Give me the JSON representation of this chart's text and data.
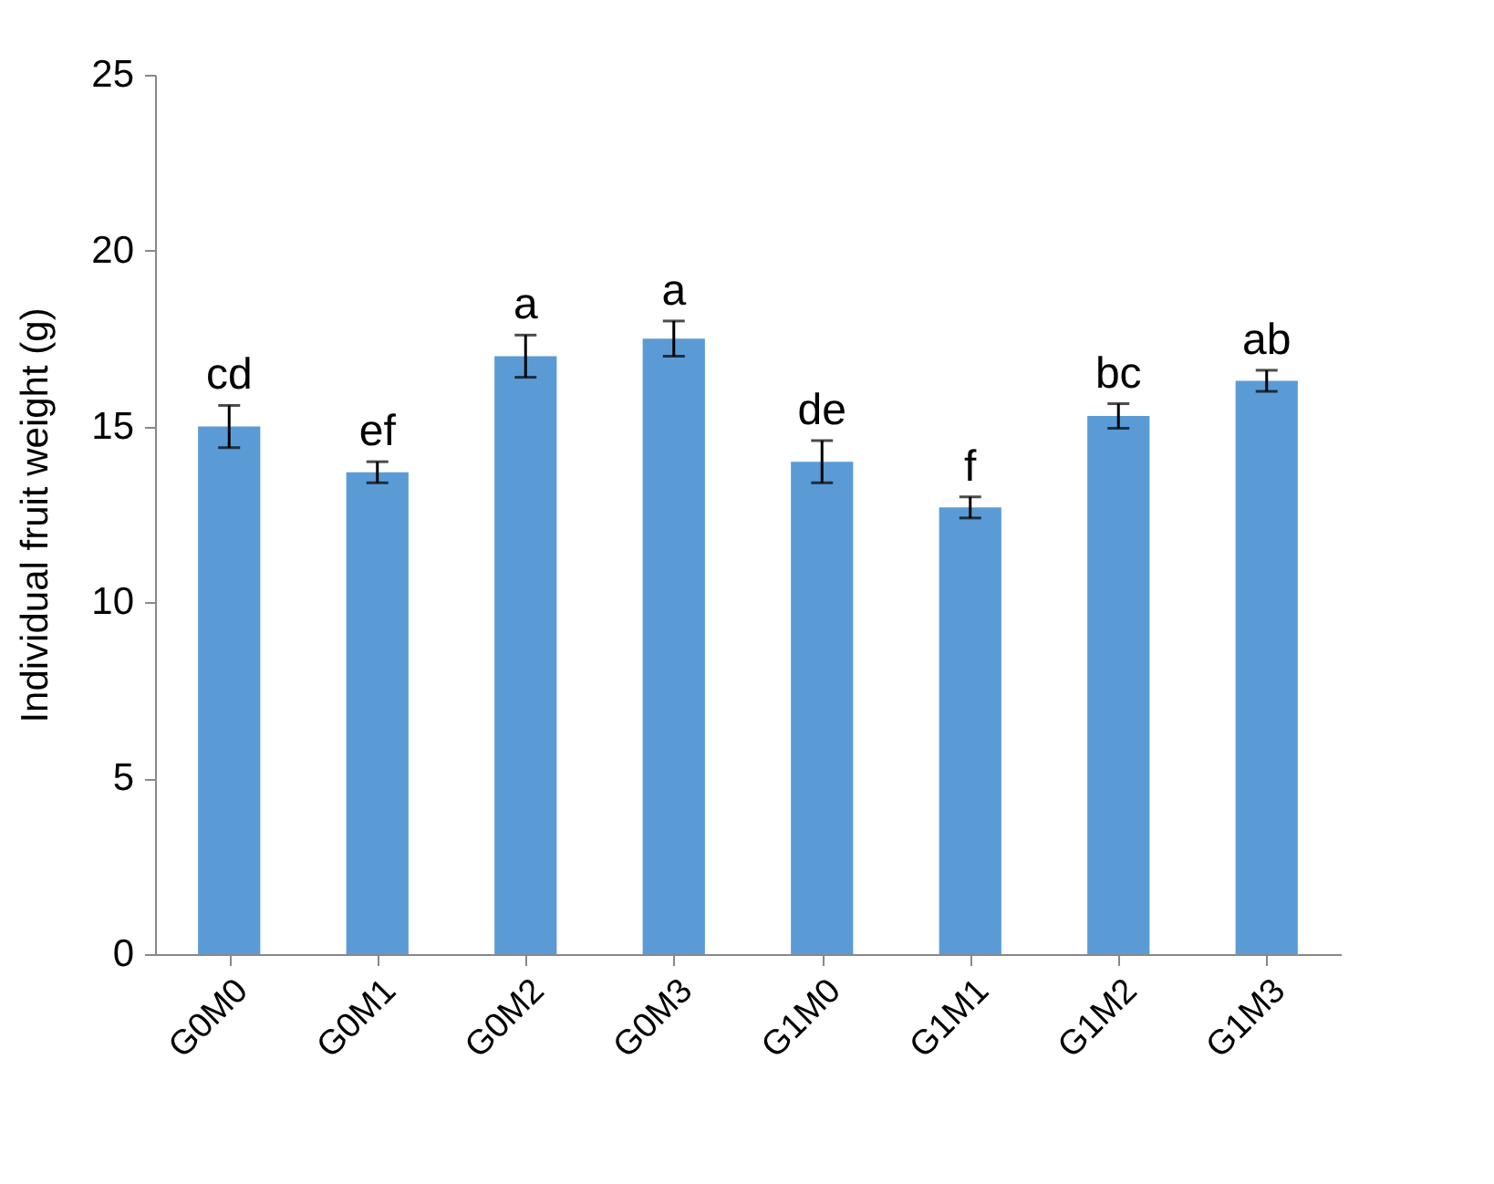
{
  "chart_data": {
    "type": "bar",
    "ylabel": "Individual fruit weight (g)",
    "categories": [
      "G0M0",
      "G0M1",
      "G0M2",
      "G0M3",
      "G1M0",
      "G1M1",
      "G1M2",
      "G1M3"
    ],
    "values": [
      15.0,
      13.7,
      17.0,
      17.5,
      14.0,
      12.7,
      15.3,
      16.3
    ],
    "errors": [
      0.6,
      0.3,
      0.6,
      0.5,
      0.6,
      0.3,
      0.35,
      0.3
    ],
    "color": "#5b9bd5",
    "ylim": [
      0,
      25
    ],
    "yticks": [
      0,
      5,
      10,
      15,
      20,
      25
    ],
    "grid": false,
    "annotations": [
      {
        "text": "cd",
        "x": "G0M0",
        "y": 15.6
      },
      {
        "text": "ef",
        "x": "G0M1",
        "y": 14.0
      },
      {
        "text": "a",
        "x": "G0M2",
        "y": 17.6
      },
      {
        "text": "a",
        "x": "G0M3",
        "y": 18.0
      },
      {
        "text": "de",
        "x": "G1M0",
        "y": 14.6
      },
      {
        "text": "f",
        "x": "G1M1",
        "y": 13.0
      },
      {
        "text": "bc",
        "x": "G1M2",
        "y": 15.65
      },
      {
        "text": "ab",
        "x": "G1M3",
        "y": 16.6
      }
    ]
  }
}
